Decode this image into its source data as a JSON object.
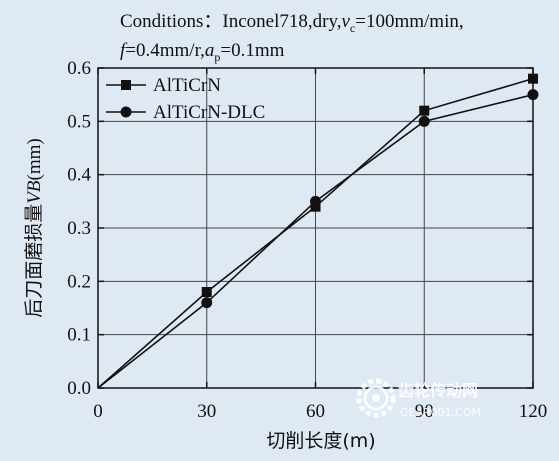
{
  "chart_data": {
    "type": "line",
    "conditions_prefix": "Conditions：Inconel718,dry,",
    "conditions_vc_symbol": "v",
    "conditions_vc_sub": "c",
    "conditions_vc_value": "=100mm/min,",
    "conditions_f_symbol": "f",
    "conditions_f_value": "=0.4mm/r,",
    "conditions_ap_symbol": "a",
    "conditions_ap_sub": "p",
    "conditions_ap_value": "=0.1mm",
    "xlabel": "切削长度(m)",
    "ylabel_prefix": "后刀面磨损量",
    "ylabel_symbol": "VB",
    "ylabel_unit": "(mm)",
    "xlim": [
      0,
      120
    ],
    "ylim": [
      0,
      0.6
    ],
    "xticks": [
      0,
      30,
      60,
      90,
      120
    ],
    "xtick_labels": [
      "0",
      "30",
      "60",
      "90",
      "120"
    ],
    "yticks": [
      0.0,
      0.1,
      0.2,
      0.3,
      0.4,
      0.5,
      0.6
    ],
    "ytick_labels": [
      "0.0",
      "0.1",
      "0.2",
      "0.3",
      "0.4",
      "0.5",
      "0.6"
    ],
    "grid": true,
    "legend_position": "top-left",
    "x": [
      0,
      30,
      60,
      90,
      120
    ],
    "series": [
      {
        "name": "AlTiCrN",
        "marker": "square",
        "values": [
          0,
          0.18,
          0.34,
          0.52,
          0.58
        ]
      },
      {
        "name": "AlTiCrN-DLC",
        "marker": "circle",
        "values": [
          0,
          0.16,
          0.35,
          0.5,
          0.55
        ]
      }
    ],
    "line_color": "#111111"
  },
  "watermark": {
    "text": "齿轮传动网",
    "subtext": "GEAR001.COM",
    "icon": "gear-icon"
  }
}
